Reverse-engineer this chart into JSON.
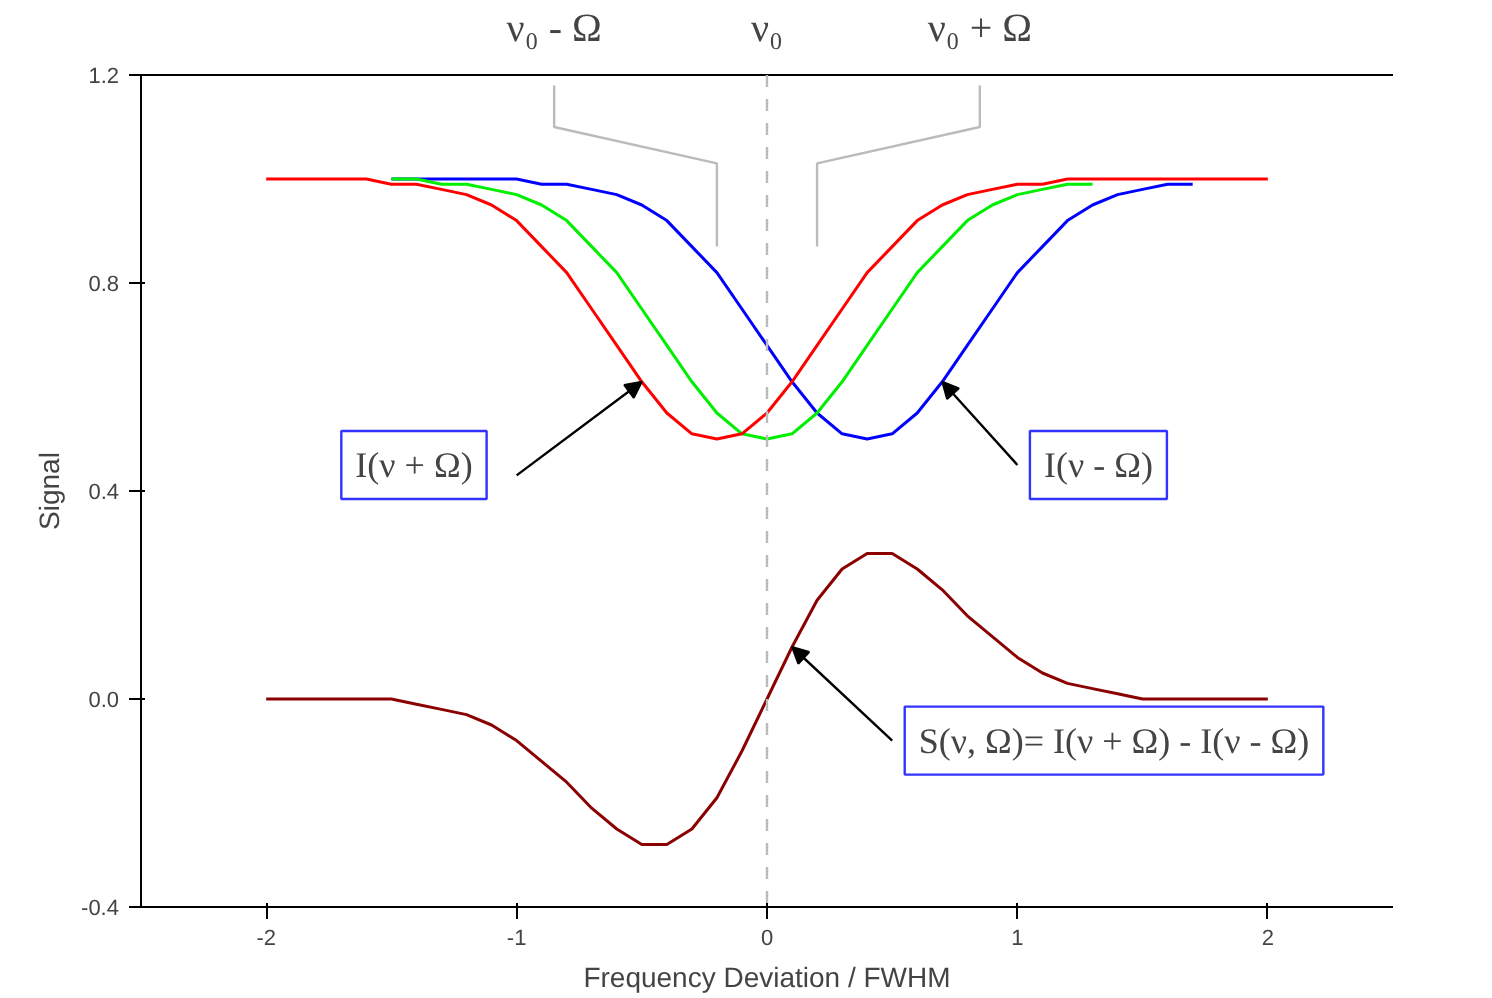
{
  "chart_data": {
    "type": "line",
    "xlabel": "Frequency Deviation / FWHM",
    "ylabel": "Signal",
    "x": [
      -2.0,
      -1.9,
      -1.8,
      -1.7,
      -1.6,
      -1.5,
      -1.4,
      -1.3,
      -1.2,
      -1.1,
      -1.0,
      -0.9,
      -0.8,
      -0.7,
      -0.6,
      -0.5,
      -0.4,
      -0.3,
      -0.2,
      -0.1,
      0.0,
      0.1,
      0.2,
      0.3,
      0.4,
      0.5,
      0.6,
      0.7,
      0.8,
      0.9,
      1.0,
      1.1,
      1.2,
      1.3,
      1.4,
      1.5,
      1.6,
      1.7,
      1.8,
      1.9,
      2.0
    ],
    "series": [
      {
        "color": "#0000ff",
        "values": [
          null,
          null,
          null,
          null,
          null,
          1.0,
          1.0,
          1.0,
          1.0,
          1.0,
          1.0,
          0.99,
          0.99,
          0.98,
          0.97,
          0.95,
          0.92,
          0.87,
          0.82,
          0.75,
          0.68,
          0.61,
          0.55,
          0.51,
          0.5,
          0.51,
          0.55,
          0.61,
          0.68,
          0.75,
          0.82,
          0.87,
          0.92,
          0.95,
          0.97,
          0.98,
          0.99,
          0.99,
          null,
          null,
          null
        ]
      },
      {
        "color": "#00ee00",
        "values": [
          null,
          null,
          null,
          null,
          null,
          1.0,
          1.0,
          0.99,
          0.99,
          0.98,
          0.97,
          0.95,
          0.92,
          0.87,
          0.82,
          0.75,
          0.68,
          0.61,
          0.55,
          0.51,
          0.5,
          0.51,
          0.55,
          0.61,
          0.68,
          0.75,
          0.82,
          0.87,
          0.92,
          0.95,
          0.97,
          0.98,
          0.99,
          0.99,
          null,
          null,
          null,
          null,
          null,
          null,
          null
        ]
      },
      {
        "color": "#ff0000",
        "values": [
          1.0,
          1.0,
          1.0,
          1.0,
          1.0,
          0.99,
          0.99,
          0.98,
          0.97,
          0.95,
          0.92,
          0.87,
          0.82,
          0.75,
          0.68,
          0.61,
          0.55,
          0.51,
          0.5,
          0.51,
          0.55,
          0.61,
          0.68,
          0.75,
          0.82,
          0.87,
          0.92,
          0.95,
          0.97,
          0.98,
          0.99,
          0.99,
          1.0,
          1.0,
          1.0,
          1.0,
          1.0,
          1.0,
          1.0,
          1.0,
          1.0
        ]
      },
      {
        "color": "#8b0000",
        "values": [
          0.0,
          0.0,
          0.0,
          0.0,
          0.0,
          0.0,
          -0.01,
          -0.02,
          -0.03,
          -0.05,
          -0.08,
          -0.12,
          -0.16,
          -0.21,
          -0.25,
          -0.28,
          -0.28,
          -0.25,
          -0.19,
          -0.1,
          0.0,
          0.1,
          0.19,
          0.25,
          0.28,
          0.28,
          0.25,
          0.21,
          0.16,
          0.12,
          0.08,
          0.05,
          0.03,
          0.02,
          0.01,
          0.0,
          0.0,
          0.0,
          0.0,
          0.0,
          0.0
        ]
      }
    ],
    "xlim": [
      -2.5,
      2.5
    ],
    "ylim": [
      -0.4,
      1.2
    ],
    "xticks": [
      -2,
      -1,
      0,
      1,
      2
    ],
    "yticks": [
      -0.4,
      {
        "value": 0,
        "label": "0.0"
      },
      0.4,
      0.8,
      1.2
    ],
    "ref_lines": [
      {
        "axis": "x",
        "value": -0.2,
        "label": "ν₀ - Ω",
        "color": "#bbbbbb",
        "line_style": "solid"
      },
      {
        "axis": "x",
        "value": 0,
        "label": "ν₀",
        "color": "#bbbbbb",
        "line_style": "dashed"
      },
      {
        "axis": "x",
        "value": 0.2,
        "label": "ν₀ + Ω",
        "color": "#bbbbbb",
        "line_style": "solid"
      }
    ],
    "annotations": [
      {
        "text": "I(ν + Ω)",
        "x": -0.5,
        "y": 0.61
      },
      {
        "text": "I(ν - Ω)",
        "x": 0.7,
        "y": 0.61
      },
      {
        "text": "S(ν, Ω)= I(ν + Ω) - I(ν - Ω)",
        "x": 0.1,
        "y": 0.1
      }
    ],
    "grid": false,
    "marker": "none",
    "line_style": "solid"
  }
}
